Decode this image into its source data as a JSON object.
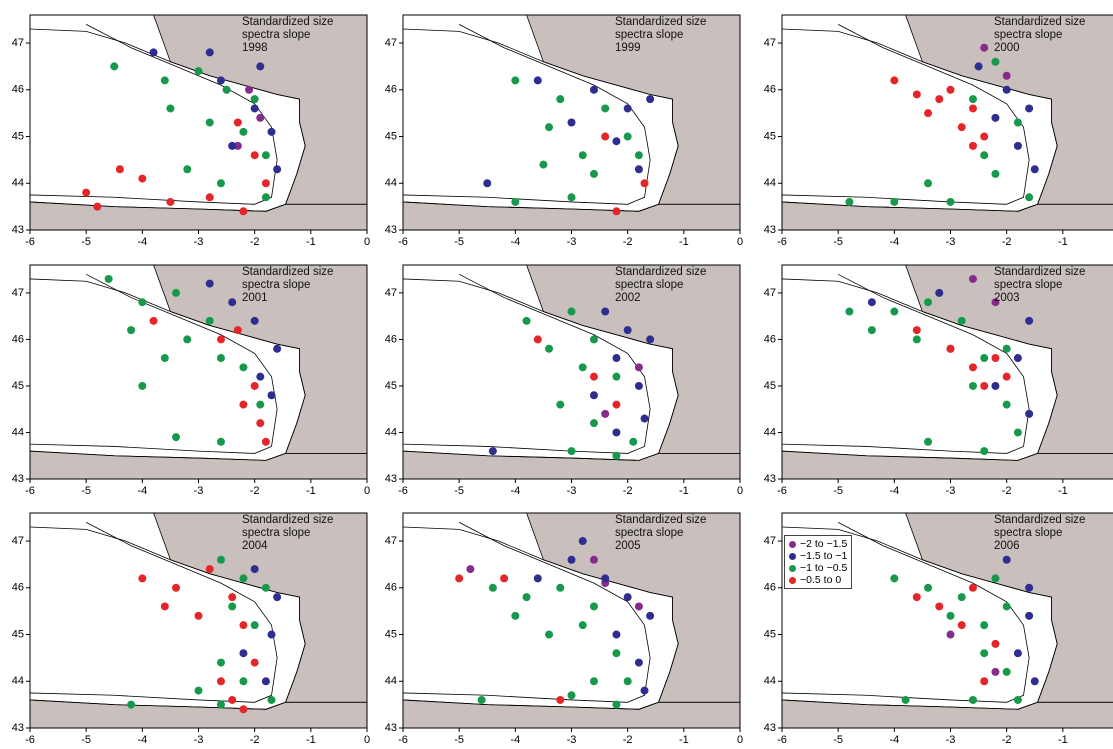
{
  "chart_data": [
    {
      "type": "scatter",
      "title": "Standardized size spectra slope",
      "subtitle": "1998",
      "xlim": [
        -6,
        0
      ],
      "ylim": [
        43,
        47.6
      ],
      "xticks": [
        -6,
        -5,
        -4,
        -3,
        -2,
        -1,
        0
      ],
      "yticks": [
        43,
        44,
        45,
        46,
        47
      ],
      "series": [
        {
          "color": "#872c8c",
          "x": [
            -2.1,
            -1.9,
            -2.3
          ],
          "values": [
            46.0,
            45.4,
            44.8
          ]
        },
        {
          "color": "#2d2e8f",
          "x": [
            -3.8,
            -2.8,
            -2.0,
            -1.7,
            -2.4,
            -1.6,
            -2.6,
            -1.9
          ],
          "values": [
            46.8,
            46.8,
            45.6,
            45.1,
            44.8,
            44.3,
            46.2,
            46.5
          ]
        },
        {
          "color": "#17994b",
          "x": [
            -4.5,
            -3.6,
            -3.0,
            -2.5,
            -2.0,
            -3.5,
            -2.8,
            -2.2,
            -1.8,
            -3.2,
            -2.6,
            -1.8
          ],
          "values": [
            46.5,
            46.2,
            46.4,
            46.0,
            45.8,
            45.6,
            45.3,
            45.1,
            44.6,
            44.3,
            44.0,
            43.7
          ]
        },
        {
          "color": "#e4262b",
          "x": [
            -5.0,
            -4.4,
            -3.5,
            -2.8,
            -2.0,
            -1.8,
            -2.2,
            -4.8,
            -4.0,
            -2.3
          ],
          "values": [
            43.8,
            44.3,
            43.6,
            43.7,
            44.6,
            44.0,
            43.4,
            43.5,
            44.1,
            45.3
          ]
        }
      ]
    },
    {
      "type": "scatter",
      "title": "Standardized size spectra slope",
      "subtitle": "1999",
      "xlim": [
        -6,
        0
      ],
      "ylim": [
        43,
        47.6
      ],
      "xticks": [
        -6,
        -5,
        -4,
        -3,
        -2,
        -1,
        0
      ],
      "yticks": [
        43,
        44,
        45,
        46,
        47
      ],
      "series": [
        {
          "color": "#2d2e8f",
          "x": [
            -3.6,
            -2.6,
            -2.0,
            -3.0,
            -2.2,
            -1.8,
            -4.5,
            -1.6
          ],
          "values": [
            46.2,
            46.0,
            45.6,
            45.3,
            44.9,
            44.3,
            44.0,
            45.8
          ]
        },
        {
          "color": "#17994b",
          "x": [
            -4.0,
            -3.2,
            -2.4,
            -3.4,
            -2.8,
            -2.0,
            -2.6,
            -3.5,
            -1.8,
            -4.0,
            -3.0
          ],
          "values": [
            46.2,
            45.8,
            45.6,
            45.2,
            44.6,
            45.0,
            44.2,
            44.4,
            44.6,
            43.6,
            43.7
          ]
        },
        {
          "color": "#e4262b",
          "x": [
            -1.7,
            -2.2,
            -2.4
          ],
          "values": [
            44.0,
            43.4,
            45.0
          ]
        }
      ]
    },
    {
      "type": "scatter",
      "title": "Standardized size spectra slope",
      "subtitle": "2000",
      "xlim": [
        -6,
        0
      ],
      "ylim": [
        43,
        47.6
      ],
      "xticks": [
        -6,
        -5,
        -4,
        -3,
        -2,
        -1,
        0
      ],
      "yticks": [
        43,
        44,
        45,
        46,
        47
      ],
      "series": [
        {
          "color": "#872c8c",
          "x": [
            -2.4,
            -2.0
          ],
          "values": [
            46.9,
            46.3
          ]
        },
        {
          "color": "#2d2e8f",
          "x": [
            -2.0,
            -1.6,
            -2.2,
            -1.8,
            -1.5,
            -2.5
          ],
          "values": [
            46.0,
            45.6,
            45.4,
            44.8,
            44.3,
            46.5
          ]
        },
        {
          "color": "#17994b",
          "x": [
            -2.2,
            -2.6,
            -1.8,
            -2.4,
            -3.4,
            -4.0,
            -2.2,
            -1.6,
            -4.8,
            -3.0
          ],
          "values": [
            46.6,
            45.8,
            45.3,
            44.6,
            44.0,
            43.6,
            44.2,
            43.7,
            43.6,
            43.6
          ]
        },
        {
          "color": "#e4262b",
          "x": [
            -4.0,
            -3.6,
            -3.0,
            -2.6,
            -3.4,
            -2.8,
            -2.4,
            -2.6,
            -3.2
          ],
          "values": [
            46.2,
            45.9,
            46.0,
            45.6,
            45.5,
            45.2,
            45.0,
            44.8,
            45.8
          ]
        }
      ]
    },
    {
      "type": "scatter",
      "title": "Standardized size spectra slope",
      "subtitle": "2001",
      "xlim": [
        -6,
        0
      ],
      "ylim": [
        43,
        47.6
      ],
      "xticks": [
        -6,
        -5,
        -4,
        -3,
        -2,
        -1,
        0
      ],
      "yticks": [
        43,
        44,
        45,
        46,
        47
      ],
      "series": [
        {
          "color": "#2d2e8f",
          "x": [
            -2.8,
            -2.0,
            -1.6,
            -1.7,
            -2.4,
            -1.9
          ],
          "values": [
            47.2,
            46.4,
            45.8,
            44.8,
            46.8,
            45.2
          ]
        },
        {
          "color": "#17994b",
          "x": [
            -4.6,
            -4.0,
            -3.4,
            -2.8,
            -4.2,
            -3.2,
            -2.6,
            -3.6,
            -2.2,
            -4.0,
            -1.9,
            -3.4,
            -2.6
          ],
          "values": [
            47.3,
            46.8,
            47.0,
            46.4,
            46.2,
            46.0,
            45.6,
            45.6,
            45.4,
            45.0,
            44.6,
            43.9,
            43.8
          ]
        },
        {
          "color": "#e4262b",
          "x": [
            -3.8,
            -2.6,
            -2.0,
            -1.9,
            -1.8,
            -2.2,
            -2.3
          ],
          "values": [
            46.4,
            46.0,
            45.0,
            44.2,
            43.8,
            44.6,
            46.2
          ]
        }
      ]
    },
    {
      "type": "scatter",
      "title": "Standardized size spectra slope",
      "subtitle": "2002",
      "xlim": [
        -6,
        0
      ],
      "ylim": [
        43,
        47.6
      ],
      "xticks": [
        -6,
        -5,
        -4,
        -3,
        -2,
        -1,
        0
      ],
      "yticks": [
        43,
        44,
        45,
        46,
        47
      ],
      "series": [
        {
          "color": "#872c8c",
          "x": [
            -1.8,
            -2.4
          ],
          "values": [
            45.4,
            44.4
          ]
        },
        {
          "color": "#2d2e8f",
          "x": [
            -2.4,
            -2.0,
            -1.6,
            -2.2,
            -1.8,
            -2.6,
            -1.7,
            -2.2,
            -4.4
          ],
          "values": [
            46.6,
            46.2,
            46.0,
            45.6,
            45.0,
            44.8,
            44.3,
            44.0,
            43.6
          ]
        },
        {
          "color": "#17994b",
          "x": [
            -3.8,
            -3.0,
            -2.6,
            -3.4,
            -2.8,
            -2.2,
            -3.2,
            -2.6,
            -1.9,
            -3.0,
            -2.2
          ],
          "values": [
            46.4,
            46.6,
            46.0,
            45.8,
            45.4,
            45.2,
            44.6,
            44.2,
            43.8,
            43.6,
            43.5
          ]
        },
        {
          "color": "#e4262b",
          "x": [
            -2.6,
            -3.6,
            -2.2
          ],
          "values": [
            45.2,
            46.0,
            44.6
          ]
        }
      ]
    },
    {
      "type": "scatter",
      "title": "Standardized size spectra slope",
      "subtitle": "2003",
      "xlim": [
        -6,
        0
      ],
      "ylim": [
        43,
        47.6
      ],
      "xticks": [
        -6,
        -5,
        -4,
        -3,
        -2,
        -1,
        0
      ],
      "yticks": [
        43,
        44,
        45,
        46,
        47
      ],
      "series": [
        {
          "color": "#872c8c",
          "x": [
            -2.6,
            -2.2
          ],
          "values": [
            47.3,
            46.8
          ]
        },
        {
          "color": "#2d2e8f",
          "x": [
            -1.6,
            -1.8,
            -2.2,
            -1.6,
            -3.2,
            -4.4
          ],
          "values": [
            46.4,
            45.6,
            45.0,
            44.4,
            47.0,
            46.8
          ]
        },
        {
          "color": "#17994b",
          "x": [
            -4.8,
            -4.0,
            -3.4,
            -2.8,
            -4.4,
            -3.6,
            -3.0,
            -2.4,
            -2.0,
            -2.6,
            -2.0,
            -1.8,
            -3.4,
            -2.4
          ],
          "values": [
            46.6,
            46.6,
            46.8,
            46.4,
            46.2,
            46.0,
            45.8,
            45.6,
            45.8,
            45.0,
            44.6,
            44.0,
            43.8,
            43.6
          ]
        },
        {
          "color": "#e4262b",
          "x": [
            -3.0,
            -2.6,
            -2.2,
            -2.4,
            -2.0,
            -3.6
          ],
          "values": [
            45.8,
            45.4,
            45.6,
            45.0,
            45.2,
            46.2
          ]
        }
      ]
    },
    {
      "type": "scatter",
      "title": "Standardized size spectra slope",
      "subtitle": "2004",
      "xlim": [
        -6,
        0
      ],
      "ylim": [
        43,
        47.6
      ],
      "xticks": [
        -6,
        -5,
        -4,
        -3,
        -2,
        -1,
        0
      ],
      "yticks": [
        43,
        44,
        45,
        46,
        47
      ],
      "series": [
        {
          "color": "#2d2e8f",
          "x": [
            -2.0,
            -1.6,
            -1.7,
            -2.2,
            -1.8
          ],
          "values": [
            46.4,
            45.8,
            45.0,
            44.6,
            44.0
          ]
        },
        {
          "color": "#17994b",
          "x": [
            -2.6,
            -2.2,
            -1.8,
            -2.4,
            -2.0,
            -2.6,
            -2.2,
            -1.7,
            -3.0,
            -4.2,
            -2.6
          ],
          "values": [
            46.6,
            46.2,
            46.0,
            45.6,
            45.2,
            44.4,
            44.0,
            43.6,
            43.8,
            43.5,
            43.5
          ]
        },
        {
          "color": "#e4262b",
          "x": [
            -4.0,
            -3.4,
            -2.8,
            -3.6,
            -3.0,
            -2.4,
            -2.2,
            -2.0,
            -2.6,
            -2.4,
            -2.2
          ],
          "values": [
            46.2,
            46.0,
            46.4,
            45.6,
            45.4,
            45.8,
            45.2,
            44.4,
            44.0,
            43.6,
            43.4
          ]
        }
      ]
    },
    {
      "type": "scatter",
      "title": "Standardized size spectra slope",
      "subtitle": "2005",
      "xlim": [
        -6,
        0
      ],
      "ylim": [
        43,
        47.6
      ],
      "xticks": [
        -6,
        -5,
        -4,
        -3,
        -2,
        -1,
        0
      ],
      "yticks": [
        43,
        44,
        45,
        46,
        47
      ],
      "series": [
        {
          "color": "#872c8c",
          "x": [
            -4.8,
            -2.6,
            -1.8,
            -2.4
          ],
          "values": [
            46.4,
            46.6,
            45.6,
            46.1
          ]
        },
        {
          "color": "#2d2e8f",
          "x": [
            -3.6,
            -3.0,
            -2.4,
            -2.0,
            -1.6,
            -2.2,
            -1.8,
            -1.7,
            -2.8
          ],
          "values": [
            46.2,
            46.6,
            46.2,
            45.8,
            45.4,
            45.0,
            44.4,
            43.8,
            47.0
          ]
        },
        {
          "color": "#17994b",
          "x": [
            -4.4,
            -3.8,
            -3.2,
            -2.6,
            -4.0,
            -3.4,
            -2.8,
            -2.2,
            -2.6,
            -2.0,
            -4.6,
            -3.0,
            -2.2
          ],
          "values": [
            46.0,
            45.8,
            46.0,
            45.6,
            45.4,
            45.0,
            45.2,
            44.6,
            44.0,
            44.0,
            43.6,
            43.7,
            43.5
          ]
        },
        {
          "color": "#e4262b",
          "x": [
            -5.0,
            -4.2,
            -3.2
          ],
          "values": [
            46.2,
            46.2,
            43.6
          ]
        }
      ]
    },
    {
      "type": "scatter",
      "title": "Standardized size spectra slope",
      "subtitle": "2006",
      "xlim": [
        -6,
        0
      ],
      "ylim": [
        43,
        47.6
      ],
      "xticks": [
        -6,
        -5,
        -4,
        -3,
        -2,
        -1,
        0
      ],
      "yticks": [
        43,
        44,
        45,
        46,
        47
      ],
      "series": [
        {
          "name": "−2 to −1.5",
          "color": "#872c8c",
          "x": [
            -2.2,
            -3.0
          ],
          "values": [
            44.2,
            45.0
          ]
        },
        {
          "name": "−1.5 to −1",
          "color": "#2d2e8f",
          "x": [
            -2.0,
            -1.6,
            -1.6,
            -1.8,
            -1.5
          ],
          "values": [
            46.6,
            46.0,
            45.4,
            44.6,
            44.0
          ]
        },
        {
          "name": "−1 to −0.5",
          "color": "#17994b",
          "x": [
            -4.0,
            -3.4,
            -2.8,
            -2.2,
            -3.0,
            -2.4,
            -2.0,
            -2.4,
            -2.0,
            -1.8,
            -3.8,
            -2.6
          ],
          "values": [
            46.2,
            46.0,
            45.8,
            46.2,
            45.4,
            45.2,
            45.6,
            44.6,
            44.2,
            43.6,
            43.6,
            43.6
          ]
        },
        {
          "name": "−0.5 to 0",
          "color": "#e4262b",
          "x": [
            -3.6,
            -3.2,
            -2.6,
            -2.8,
            -2.2,
            -2.4
          ],
          "values": [
            45.8,
            45.6,
            46.0,
            45.2,
            44.8,
            44.0
          ]
        }
      ]
    }
  ]
}
